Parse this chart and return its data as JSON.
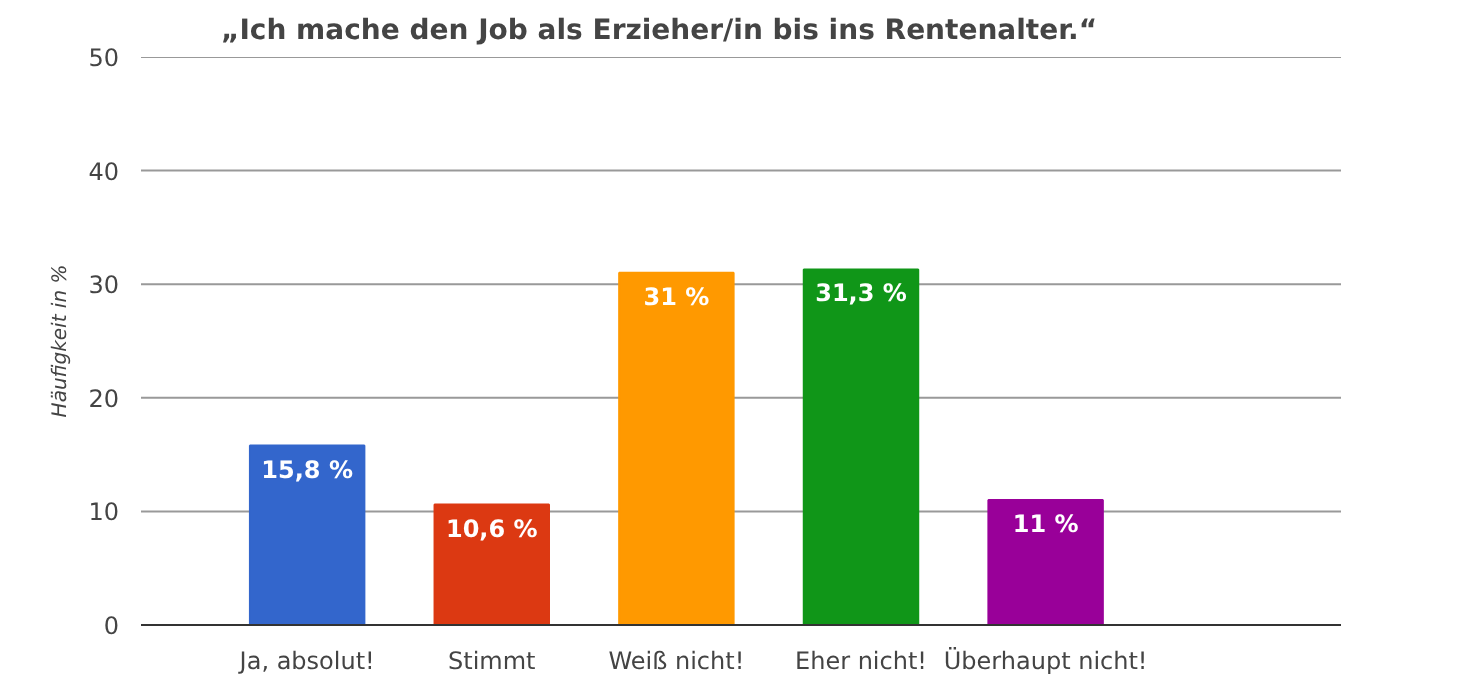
{
  "chart_data": {
    "type": "bar",
    "title": "„Ich mache den Job als Erzieher/in bis ins Rentenalter.“",
    "ylabel": "Häufigkeit in %",
    "categories": [
      "Ja, absolut!",
      "Stimmt",
      "Weiß nicht!",
      "Eher nicht!",
      "Überhaupt nicht!"
    ],
    "values": [
      15.8,
      10.6,
      31,
      31.3,
      11
    ],
    "value_labels": [
      "15,8 %",
      "10,6 %",
      "31 %",
      "31,3 %",
      "11 %"
    ],
    "colors": [
      "#3366cc",
      "#dc3912",
      "#ff9900",
      "#109618",
      "#990099"
    ],
    "ylim": [
      0,
      50
    ],
    "yticks": [
      0,
      10,
      20,
      30,
      40,
      50
    ],
    "grid": "y"
  }
}
